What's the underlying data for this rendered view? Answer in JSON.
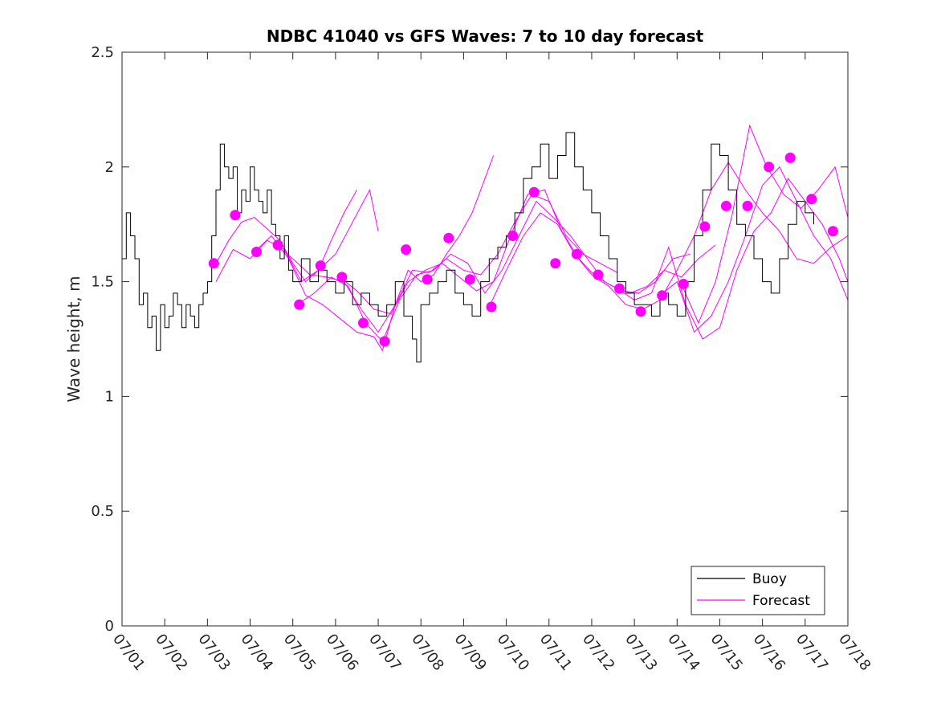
{
  "chart_data": {
    "type": "line",
    "title": "NDBC 41040 vs GFS Waves: 7 to 10 day forecast",
    "xlabel": "",
    "ylabel": "Wave height, m",
    "ylim": [
      0,
      2.5
    ],
    "y_ticks": [
      "0",
      "0.5",
      "1",
      "1.5",
      "2",
      "2.5"
    ],
    "x_tick_labels": [
      "07/01",
      "07/02",
      "07/03",
      "07/04",
      "07/05",
      "07/06",
      "07/07",
      "07/08",
      "07/09",
      "07/10",
      "07/11",
      "07/12",
      "07/13",
      "07/14",
      "07/15",
      "07/16",
      "07/17",
      "07/18"
    ],
    "x_unit": "day of July",
    "xlim": [
      1,
      18
    ],
    "grid": false,
    "legend_position": "bottom-right",
    "colors": {
      "buoy": "#000000",
      "forecast": "#ff00ff"
    },
    "series": [
      {
        "name": "Buoy",
        "style": "line",
        "x": [
          1.0,
          1.1,
          1.2,
          1.3,
          1.4,
          1.5,
          1.6,
          1.7,
          1.8,
          1.9,
          2.0,
          2.1,
          2.2,
          2.3,
          2.4,
          2.5,
          2.6,
          2.7,
          2.8,
          2.9,
          3.0,
          3.1,
          3.2,
          3.3,
          3.4,
          3.5,
          3.6,
          3.7,
          3.8,
          3.9,
          4.0,
          4.1,
          4.2,
          4.3,
          4.4,
          4.5,
          4.6,
          4.7,
          4.8,
          4.9,
          5.0,
          5.2,
          5.4,
          5.6,
          5.8,
          6.0,
          6.2,
          6.4,
          6.6,
          6.8,
          7.0,
          7.2,
          7.4,
          7.6,
          7.8,
          7.9,
          8.0,
          8.2,
          8.4,
          8.6,
          8.8,
          9.0,
          9.2,
          9.4,
          9.6,
          9.8,
          10.0,
          10.2,
          10.4,
          10.6,
          10.8,
          11.0,
          11.2,
          11.4,
          11.6,
          11.8,
          12.0,
          12.2,
          12.4,
          12.6,
          12.8,
          13.0,
          13.2,
          13.4,
          13.6,
          13.8,
          14.0,
          14.2,
          14.4,
          14.6,
          14.8,
          15.0,
          15.2,
          15.4,
          15.6,
          15.8,
          16.0,
          16.2,
          16.4,
          16.6,
          16.8,
          17.0,
          17.2
        ],
        "y": [
          1.6,
          1.8,
          1.7,
          1.6,
          1.4,
          1.45,
          1.3,
          1.35,
          1.2,
          1.4,
          1.3,
          1.35,
          1.45,
          1.4,
          1.3,
          1.4,
          1.35,
          1.3,
          1.4,
          1.45,
          1.5,
          1.7,
          1.9,
          2.1,
          2.0,
          1.95,
          2.0,
          1.8,
          1.9,
          1.85,
          2.0,
          1.9,
          1.85,
          1.8,
          1.9,
          1.75,
          1.7,
          1.6,
          1.7,
          1.55,
          1.5,
          1.6,
          1.5,
          1.55,
          1.5,
          1.45,
          1.5,
          1.4,
          1.45,
          1.4,
          1.35,
          1.4,
          1.5,
          1.35,
          1.25,
          1.15,
          1.4,
          1.45,
          1.5,
          1.55,
          1.45,
          1.4,
          1.35,
          1.5,
          1.6,
          1.65,
          1.7,
          1.8,
          1.95,
          2.0,
          2.1,
          1.95,
          2.05,
          2.15,
          2.0,
          1.9,
          1.8,
          1.7,
          1.6,
          1.5,
          1.45,
          1.4,
          1.4,
          1.35,
          1.45,
          1.4,
          1.35,
          1.5,
          1.7,
          1.9,
          2.1,
          2.05,
          1.9,
          1.75,
          1.7,
          1.6,
          1.5,
          1.45,
          1.6,
          1.75,
          1.85,
          1.8,
          1.75
        ]
      },
      {
        "name": "Forecast",
        "style": "line",
        "runs": [
          {
            "x": [
              3.2,
              3.5,
              3.8,
              4.1,
              4.4,
              4.7,
              5.0,
              5.3,
              5.6,
              5.9,
              6.2,
              6.5
            ],
            "y": [
              1.58,
              1.68,
              1.76,
              1.78,
              1.73,
              1.68,
              1.58,
              1.5,
              1.55,
              1.68,
              1.8,
              1.9
            ]
          },
          {
            "x": [
              3.2,
              3.6,
              4.0,
              4.4,
              4.8,
              5.2,
              5.6,
              6.0,
              6.4,
              6.8,
              7.0
            ],
            "y": [
              1.5,
              1.64,
              1.6,
              1.68,
              1.64,
              1.5,
              1.55,
              1.62,
              1.76,
              1.9,
              1.72
            ]
          },
          {
            "x": [
              4.1,
              4.5,
              4.9,
              5.3,
              5.7,
              6.1,
              6.5,
              6.9,
              7.1,
              7.4,
              7.7,
              8.0,
              8.3,
              8.6,
              8.9,
              9.2,
              9.5,
              9.7
            ],
            "y": [
              1.63,
              1.7,
              1.6,
              1.44,
              1.4,
              1.34,
              1.28,
              1.26,
              1.2,
              1.4,
              1.55,
              1.5,
              1.53,
              1.62,
              1.7,
              1.8,
              1.95,
              2.05
            ]
          },
          {
            "x": [
              4.6,
              5.0,
              5.4,
              5.8,
              6.2,
              6.6,
              7.0,
              7.4,
              7.8,
              8.2,
              8.6,
              9.0,
              9.4,
              9.8,
              10.2,
              10.6,
              11.0,
              11.4,
              11.8,
              12.2,
              12.6
            ],
            "y": [
              1.66,
              1.6,
              1.53,
              1.52,
              1.5,
              1.38,
              1.28,
              1.4,
              1.55,
              1.54,
              1.6,
              1.55,
              1.53,
              1.62,
              1.76,
              1.88,
              1.85,
              1.7,
              1.62,
              1.58,
              1.54
            ]
          },
          {
            "x": [
              5.1,
              5.5,
              5.9,
              6.3,
              6.7,
              7.1,
              7.5,
              7.9,
              8.3,
              8.7,
              9.1,
              9.5,
              9.9,
              10.3,
              10.7,
              11.1,
              11.5,
              11.9,
              12.3,
              12.7,
              13.1,
              13.5,
              13.9,
              14.3
            ],
            "y": [
              1.4,
              1.45,
              1.52,
              1.48,
              1.32,
              1.24,
              1.42,
              1.53,
              1.55,
              1.62,
              1.58,
              1.45,
              1.55,
              1.7,
              1.85,
              1.78,
              1.7,
              1.6,
              1.5,
              1.46,
              1.45,
              1.5,
              1.6,
              1.62
            ]
          },
          {
            "x": [
              6.1,
              6.5,
              6.9,
              7.3,
              7.7,
              8.1,
              8.5,
              8.9,
              9.3,
              9.7,
              10.1,
              10.5,
              10.9,
              11.3,
              11.7,
              12.1,
              12.5,
              12.9,
              13.3,
              13.7,
              14.1,
              14.5,
              14.9
            ],
            "y": [
              1.52,
              1.46,
              1.38,
              1.36,
              1.5,
              1.55,
              1.58,
              1.52,
              1.46,
              1.5,
              1.7,
              1.88,
              1.9,
              1.72,
              1.6,
              1.52,
              1.48,
              1.45,
              1.48,
              1.55,
              1.52,
              1.6,
              1.66
            ]
          },
          {
            "x": [
              9.6,
              10.0,
              10.4,
              10.8,
              11.2,
              11.6,
              12.0,
              12.4,
              12.8,
              13.2,
              13.6,
              14.0,
              14.4,
              14.8,
              15.2,
              15.6,
              16.0,
              16.4,
              16.8,
              17.2,
              17.6,
              18.0
            ],
            "y": [
              1.39,
              1.55,
              1.7,
              1.8,
              1.75,
              1.62,
              1.53,
              1.48,
              1.4,
              1.38,
              1.42,
              1.55,
              1.7,
              1.9,
              2.02,
              1.9,
              1.8,
              1.72,
              1.6,
              1.58,
              1.65,
              1.7
            ]
          },
          {
            "x": [
              12.6,
              13.0,
              13.4,
              13.8,
              14.2,
              14.6,
              15.0,
              15.4,
              15.8,
              16.2,
              16.6,
              17.0,
              17.4,
              17.8,
              18.0
            ],
            "y": [
              1.47,
              1.42,
              1.45,
              1.65,
              1.4,
              1.25,
              1.3,
              1.55,
              1.72,
              1.8,
              1.95,
              1.85,
              1.75,
              1.6,
              1.5
            ]
          },
          {
            "x": [
              13.6,
              14.0,
              14.4,
              14.8,
              15.2,
              15.6,
              16.0,
              16.4,
              16.8,
              17.2,
              17.6,
              18.0
            ],
            "y": [
              1.44,
              1.5,
              1.28,
              1.35,
              1.5,
              1.7,
              1.92,
              2.0,
              1.85,
              1.7,
              1.6,
              1.42
            ]
          },
          {
            "x": [
              14.1,
              14.5,
              14.9,
              15.3,
              15.7,
              16.1,
              16.5,
              16.9,
              17.3,
              17.7,
              18.0
            ],
            "y": [
              1.49,
              1.32,
              1.5,
              1.8,
              2.18,
              2.0,
              1.88,
              1.82,
              1.9,
              2.0,
              1.78
            ]
          }
        ],
        "markers": {
          "x": [
            3.15,
            3.65,
            4.15,
            4.65,
            5.15,
            5.65,
            6.15,
            6.65,
            7.15,
            7.65,
            8.15,
            8.65,
            9.15,
            9.65,
            10.15,
            10.65,
            11.15,
            11.65,
            12.15,
            12.65,
            13.15,
            13.65,
            14.15,
            14.65,
            15.15,
            15.65,
            16.15,
            16.65,
            17.15,
            17.65
          ],
          "y": [
            1.58,
            1.79,
            1.63,
            1.66,
            1.4,
            1.57,
            1.52,
            1.32,
            1.24,
            1.64,
            1.51,
            1.69,
            1.51,
            1.39,
            1.7,
            1.89,
            1.58,
            1.62,
            1.53,
            1.47,
            1.37,
            1.44,
            1.49,
            1.74,
            1.83,
            1.83,
            2.0,
            2.04,
            1.86,
            1.72
          ]
        }
      }
    ],
    "legend": [
      {
        "label": "Buoy",
        "color_key": "buoy"
      },
      {
        "label": "Forecast",
        "color_key": "forecast"
      }
    ]
  }
}
